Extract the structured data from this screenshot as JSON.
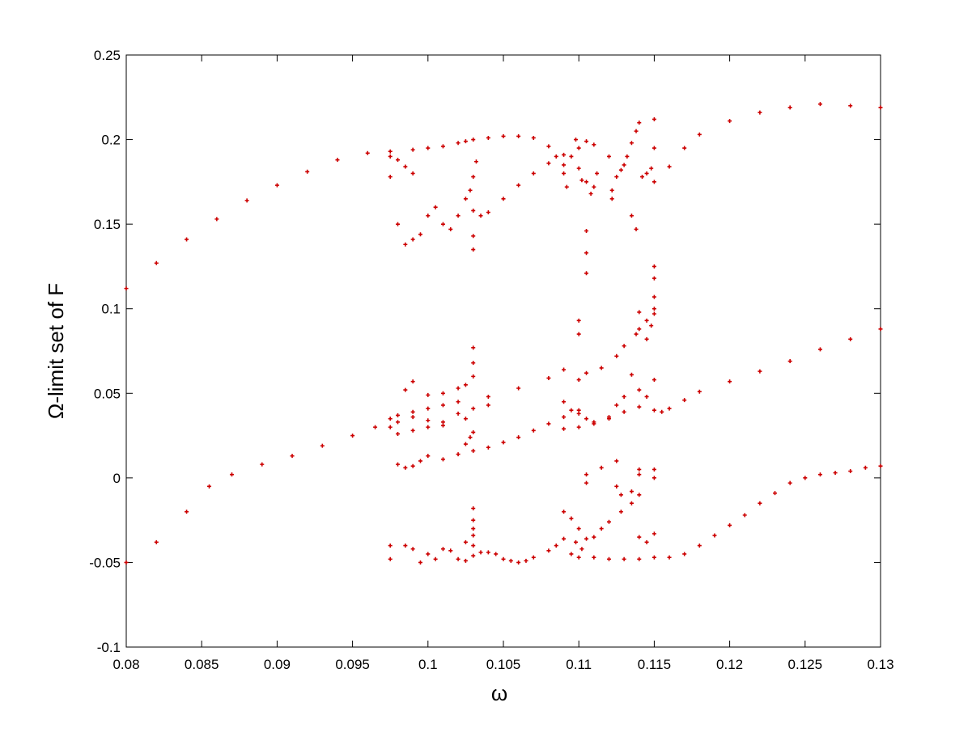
{
  "chart_data": {
    "type": "scatter",
    "title": "",
    "xlabel": "ω",
    "ylabel": "Ω-limit set of F",
    "xlim": [
      0.08,
      0.13
    ],
    "ylim": [
      -0.1,
      0.25
    ],
    "x_ticks": [
      0.08,
      0.085,
      0.09,
      0.095,
      0.1,
      0.105,
      0.11,
      0.115,
      0.12,
      0.125,
      0.13
    ],
    "x_tick_labels": [
      "0.08",
      "0.085",
      "0.09",
      "0.095",
      "0.1",
      "0.105",
      "0.11",
      "0.115",
      "0.12",
      "0.125",
      "0.13"
    ],
    "y_ticks": [
      -0.1,
      -0.05,
      0,
      0.05,
      0.1,
      0.15,
      0.2,
      0.25
    ],
    "y_tick_labels": [
      "-0.1",
      "-0.05",
      "0",
      "0.05",
      "0.1",
      "0.15",
      "0.2",
      "0.25"
    ],
    "grid": false,
    "legend": "none",
    "marker": "+",
    "marker_color": "#cc0000",
    "series": [
      {
        "points": [
          [
            0.08,
            0.112
          ],
          [
            0.082,
            0.127
          ],
          [
            0.084,
            0.141
          ],
          [
            0.086,
            0.153
          ],
          [
            0.088,
            0.164
          ],
          [
            0.09,
            0.173
          ],
          [
            0.092,
            0.181
          ],
          [
            0.094,
            0.188
          ],
          [
            0.096,
            0.192
          ],
          [
            0.0975,
            0.193
          ],
          [
            0.099,
            0.194
          ],
          [
            0.1,
            0.195
          ],
          [
            0.101,
            0.196
          ],
          [
            0.102,
            0.198
          ],
          [
            0.1025,
            0.199
          ],
          [
            0.103,
            0.2
          ],
          [
            0.104,
            0.201
          ],
          [
            0.105,
            0.202
          ],
          [
            0.106,
            0.202
          ],
          [
            0.107,
            0.201
          ],
          [
            0.108,
            0.196
          ],
          [
            0.1085,
            0.19
          ],
          [
            0.109,
            0.185
          ],
          [
            0.1035,
            0.155
          ],
          [
            0.104,
            0.157
          ],
          [
            0.105,
            0.165
          ],
          [
            0.106,
            0.173
          ],
          [
            0.107,
            0.18
          ],
          [
            0.108,
            0.186
          ],
          [
            0.109,
            0.191
          ],
          [
            0.11,
            0.195
          ],
          [
            0.1105,
            0.199
          ],
          [
            0.111,
            0.197
          ],
          [
            0.112,
            0.19
          ],
          [
            0.116,
            0.184
          ],
          [
            0.117,
            0.195
          ],
          [
            0.118,
            0.203
          ],
          [
            0.12,
            0.211
          ],
          [
            0.122,
            0.216
          ],
          [
            0.124,
            0.219
          ],
          [
            0.126,
            0.221
          ],
          [
            0.128,
            0.22
          ],
          [
            0.13,
            0.219
          ],
          [
            0.0975,
            0.19
          ],
          [
            0.098,
            0.188
          ],
          [
            0.0985,
            0.184
          ],
          [
            0.099,
            0.18
          ],
          [
            0.0975,
            0.178
          ],
          [
            0.098,
            0.15
          ],
          [
            0.0985,
            0.138
          ],
          [
            0.099,
            0.141
          ],
          [
            0.0995,
            0.144
          ],
          [
            0.1,
            0.155
          ],
          [
            0.1005,
            0.16
          ],
          [
            0.101,
            0.15
          ],
          [
            0.1015,
            0.147
          ],
          [
            0.102,
            0.155
          ],
          [
            0.1025,
            0.165
          ],
          [
            0.1028,
            0.17
          ],
          [
            0.103,
            0.158
          ],
          [
            0.103,
            0.143
          ],
          [
            0.103,
            0.135
          ],
          [
            0.103,
            0.178
          ],
          [
            0.1032,
            0.187
          ],
          [
            0.109,
            0.18
          ],
          [
            0.1092,
            0.172
          ],
          [
            0.1095,
            0.19
          ],
          [
            0.1098,
            0.2
          ],
          [
            0.11,
            0.183
          ],
          [
            0.1102,
            0.176
          ],
          [
            0.1105,
            0.175
          ],
          [
            0.1108,
            0.168
          ],
          [
            0.111,
            0.172
          ],
          [
            0.1112,
            0.18
          ],
          [
            0.1122,
            0.17
          ],
          [
            0.1122,
            0.165
          ],
          [
            0.1125,
            0.178
          ],
          [
            0.1128,
            0.182
          ],
          [
            0.113,
            0.185
          ],
          [
            0.1132,
            0.19
          ],
          [
            0.1135,
            0.198
          ],
          [
            0.1138,
            0.205
          ],
          [
            0.114,
            0.21
          ],
          [
            0.1142,
            0.178
          ],
          [
            0.1145,
            0.18
          ],
          [
            0.1148,
            0.183
          ],
          [
            0.115,
            0.175
          ],
          [
            0.115,
            0.195
          ],
          [
            0.115,
            0.212
          ],
          [
            0.1135,
            0.155
          ],
          [
            0.1138,
            0.147
          ],
          [
            0.1105,
            0.146
          ],
          [
            0.1105,
            0.133
          ],
          [
            0.1105,
            0.121
          ],
          [
            0.115,
            0.125
          ],
          [
            0.115,
            0.118
          ],
          [
            0.115,
            0.107
          ],
          [
            0.115,
            0.097
          ],
          [
            0.11,
            0.093
          ],
          [
            0.11,
            0.085
          ],
          [
            0.114,
            0.098
          ],
          [
            0.114,
            0.088
          ],
          [
            0.1145,
            0.082
          ],
          [
            0.1148,
            0.09
          ],
          [
            0.08,
            -0.05
          ],
          [
            0.082,
            -0.038
          ],
          [
            0.084,
            -0.02
          ],
          [
            0.0855,
            -0.005
          ],
          [
            0.087,
            0.002
          ],
          [
            0.089,
            0.008
          ],
          [
            0.091,
            0.013
          ],
          [
            0.093,
            0.019
          ],
          [
            0.095,
            0.025
          ],
          [
            0.0965,
            0.03
          ],
          [
            0.0975,
            0.035
          ],
          [
            0.098,
            0.037
          ],
          [
            0.099,
            0.039
          ],
          [
            0.1,
            0.041
          ],
          [
            0.101,
            0.043
          ],
          [
            0.102,
            0.045
          ],
          [
            0.104,
            0.048
          ],
          [
            0.106,
            0.053
          ],
          [
            0.108,
            0.059
          ],
          [
            0.109,
            0.064
          ],
          [
            0.11,
            0.058
          ],
          [
            0.1105,
            0.062
          ],
          [
            0.1115,
            0.065
          ],
          [
            0.1125,
            0.072
          ],
          [
            0.113,
            0.078
          ],
          [
            0.1138,
            0.085
          ],
          [
            0.1145,
            0.093
          ],
          [
            0.115,
            0.1
          ],
          [
            0.0975,
            0.03
          ],
          [
            0.098,
            0.033
          ],
          [
            0.099,
            0.036
          ],
          [
            0.1,
            0.034
          ],
          [
            0.101,
            0.033
          ],
          [
            0.102,
            0.038
          ],
          [
            0.103,
            0.041
          ],
          [
            0.104,
            0.043
          ],
          [
            0.098,
            0.026
          ],
          [
            0.099,
            0.028
          ],
          [
            0.1,
            0.03
          ],
          [
            0.101,
            0.031
          ],
          [
            0.1025,
            0.035
          ],
          [
            0.103,
            0.06
          ],
          [
            0.103,
            0.068
          ],
          [
            0.103,
            0.077
          ],
          [
            0.1025,
            0.055
          ],
          [
            0.099,
            0.057
          ],
          [
            0.0985,
            0.052
          ],
          [
            0.1,
            0.049
          ],
          [
            0.101,
            0.05
          ],
          [
            0.102,
            0.053
          ],
          [
            0.109,
            0.045
          ],
          [
            0.1095,
            0.04
          ],
          [
            0.11,
            0.038
          ],
          [
            0.1105,
            0.035
          ],
          [
            0.111,
            0.033
          ],
          [
            0.112,
            0.036
          ],
          [
            0.113,
            0.039
          ],
          [
            0.114,
            0.042
          ],
          [
            0.115,
            0.04
          ],
          [
            0.1155,
            0.039
          ],
          [
            0.109,
            0.029
          ],
          [
            0.11,
            0.03
          ],
          [
            0.111,
            0.032
          ],
          [
            0.112,
            0.035
          ],
          [
            0.1125,
            0.043
          ],
          [
            0.113,
            0.048
          ],
          [
            0.114,
            0.052
          ],
          [
            0.115,
            0.058
          ],
          [
            0.1135,
            0.061
          ],
          [
            0.1145,
            0.048
          ],
          [
            0.116,
            0.041
          ],
          [
            0.117,
            0.046
          ],
          [
            0.118,
            0.051
          ],
          [
            0.12,
            0.057
          ],
          [
            0.122,
            0.063
          ],
          [
            0.124,
            0.069
          ],
          [
            0.126,
            0.076
          ],
          [
            0.128,
            0.082
          ],
          [
            0.13,
            0.088
          ],
          [
            0.098,
            0.008
          ],
          [
            0.0985,
            0.006
          ],
          [
            0.099,
            0.007
          ],
          [
            0.0995,
            0.01
          ],
          [
            0.1,
            0.013
          ],
          [
            0.101,
            0.011
          ],
          [
            0.102,
            0.014
          ],
          [
            0.103,
            0.016
          ],
          [
            0.104,
            0.018
          ],
          [
            0.105,
            0.021
          ],
          [
            0.106,
            0.024
          ],
          [
            0.107,
            0.028
          ],
          [
            0.108,
            0.032
          ],
          [
            0.109,
            0.036
          ],
          [
            0.11,
            0.04
          ],
          [
            0.1025,
            0.02
          ],
          [
            0.1028,
            0.024
          ],
          [
            0.103,
            0.027
          ],
          [
            0.1105,
            -0.003
          ],
          [
            0.1105,
            0.002
          ],
          [
            0.1115,
            0.006
          ],
          [
            0.1125,
            0.01
          ],
          [
            0.1125,
            -0.005
          ],
          [
            0.1128,
            -0.01
          ],
          [
            0.1135,
            -0.008
          ],
          [
            0.114,
            0.002
          ],
          [
            0.114,
            0.005
          ],
          [
            0.115,
            0.005
          ],
          [
            0.115,
            0.0
          ],
          [
            0.109,
            -0.02
          ],
          [
            0.1095,
            -0.024
          ],
          [
            0.11,
            -0.03
          ],
          [
            0.1105,
            -0.036
          ],
          [
            0.1102,
            -0.042
          ],
          [
            0.1098,
            -0.038
          ],
          [
            0.111,
            -0.035
          ],
          [
            0.1115,
            -0.03
          ],
          [
            0.112,
            -0.026
          ],
          [
            0.1128,
            -0.02
          ],
          [
            0.1135,
            -0.015
          ],
          [
            0.114,
            -0.01
          ],
          [
            0.103,
            -0.018
          ],
          [
            0.103,
            -0.025
          ],
          [
            0.103,
            -0.03
          ],
          [
            0.103,
            -0.034
          ],
          [
            0.103,
            -0.04
          ],
          [
            0.1025,
            -0.038
          ],
          [
            0.114,
            -0.035
          ],
          [
            0.115,
            -0.033
          ],
          [
            0.1145,
            -0.038
          ],
          [
            0.0975,
            -0.04
          ],
          [
            0.0975,
            -0.048
          ],
          [
            0.0985,
            -0.04
          ],
          [
            0.099,
            -0.042
          ],
          [
            0.0995,
            -0.05
          ],
          [
            0.1,
            -0.045
          ],
          [
            0.1005,
            -0.048
          ],
          [
            0.101,
            -0.042
          ],
          [
            0.1015,
            -0.043
          ],
          [
            0.102,
            -0.048
          ],
          [
            0.1025,
            -0.049
          ],
          [
            0.103,
            -0.046
          ],
          [
            0.1035,
            -0.044
          ],
          [
            0.104,
            -0.044
          ],
          [
            0.1045,
            -0.045
          ],
          [
            0.105,
            -0.048
          ],
          [
            0.1055,
            -0.049
          ],
          [
            0.106,
            -0.05
          ],
          [
            0.1065,
            -0.049
          ],
          [
            0.107,
            -0.047
          ],
          [
            0.108,
            -0.043
          ],
          [
            0.1085,
            -0.04
          ],
          [
            0.109,
            -0.036
          ],
          [
            0.1095,
            -0.045
          ],
          [
            0.11,
            -0.047
          ],
          [
            0.111,
            -0.047
          ],
          [
            0.112,
            -0.048
          ],
          [
            0.113,
            -0.048
          ],
          [
            0.114,
            -0.048
          ],
          [
            0.115,
            -0.047
          ],
          [
            0.116,
            -0.047
          ],
          [
            0.117,
            -0.045
          ],
          [
            0.118,
            -0.04
          ],
          [
            0.119,
            -0.034
          ],
          [
            0.12,
            -0.028
          ],
          [
            0.121,
            -0.022
          ],
          [
            0.122,
            -0.015
          ],
          [
            0.123,
            -0.009
          ],
          [
            0.124,
            -0.003
          ],
          [
            0.125,
            0.0
          ],
          [
            0.126,
            0.002
          ],
          [
            0.127,
            0.003
          ],
          [
            0.128,
            0.004
          ],
          [
            0.129,
            0.006
          ],
          [
            0.13,
            0.007
          ]
        ]
      }
    ]
  }
}
